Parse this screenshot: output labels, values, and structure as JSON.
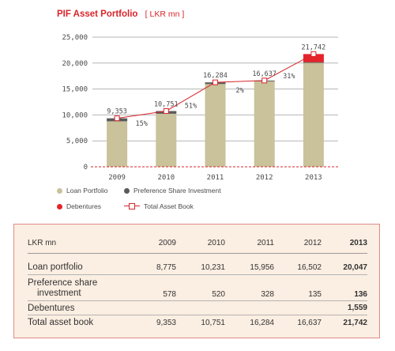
{
  "chart_data": {
    "type": "bar",
    "title": "PIF Asset Portfolio",
    "unit_label": "[ LKR mn ]",
    "categories": [
      "2009",
      "2010",
      "2011",
      "2012",
      "2013"
    ],
    "ylim": [
      0,
      25000
    ],
    "yticks": [
      "0",
      "5,000",
      "10,000",
      "15,000",
      "20,000",
      "25,000"
    ],
    "ytick_values": [
      0,
      5000,
      10000,
      15000,
      20000,
      25000
    ],
    "grid": true,
    "legend_position": "bottom-left",
    "series": [
      {
        "name": "Loan Portfolio",
        "type": "bar",
        "color": "#c9c29a",
        "values": [
          8775,
          10231,
          15956,
          16502,
          20047
        ]
      },
      {
        "name": "Preference Share Investment",
        "type": "bar",
        "color": "#5a5a5a",
        "values": [
          578,
          520,
          328,
          135,
          136
        ]
      },
      {
        "name": "Debentures",
        "type": "bar",
        "color": "#e4232b",
        "values": [
          0,
          0,
          0,
          0,
          1559
        ]
      },
      {
        "name": "Total Asset Book",
        "type": "line",
        "color": "#d8252b",
        "values": [
          9353,
          10751,
          16284,
          16637,
          21742
        ]
      }
    ],
    "total_labels": [
      "9,353",
      "10,751",
      "16,284",
      "16,637",
      "21,742"
    ],
    "growth_labels": [
      "15%",
      "51%",
      "2%",
      "31%"
    ]
  },
  "legend": {
    "loan": "Loan Portfolio",
    "pref": "Preference Share Investment",
    "deb": "Debentures",
    "total": "Total Asset Book"
  },
  "table": {
    "headers": [
      "LKR mn",
      "2009",
      "2010",
      "2011",
      "2012",
      "2013"
    ],
    "rows": [
      {
        "label": "Loan portfolio",
        "values": [
          "8,775",
          "10,231",
          "15,956",
          "16,502",
          "20,047"
        ]
      },
      {
        "label_line1": "Preference share",
        "label_line2": "investment",
        "values": [
          "578",
          "520",
          "328",
          "135",
          "136"
        ]
      },
      {
        "label": "Debentures",
        "values": [
          "",
          "",
          "",
          "",
          "1,559"
        ]
      },
      {
        "label": "Total asset book",
        "values": [
          "9,353",
          "10,751",
          "16,284",
          "16,637",
          "21,742"
        ]
      }
    ]
  },
  "colors": {
    "accent": "#d8252b",
    "loan": "#c9c29a",
    "pref": "#5a5a5a",
    "debenture": "#e4232b",
    "table_bg": "#fbeee2"
  }
}
